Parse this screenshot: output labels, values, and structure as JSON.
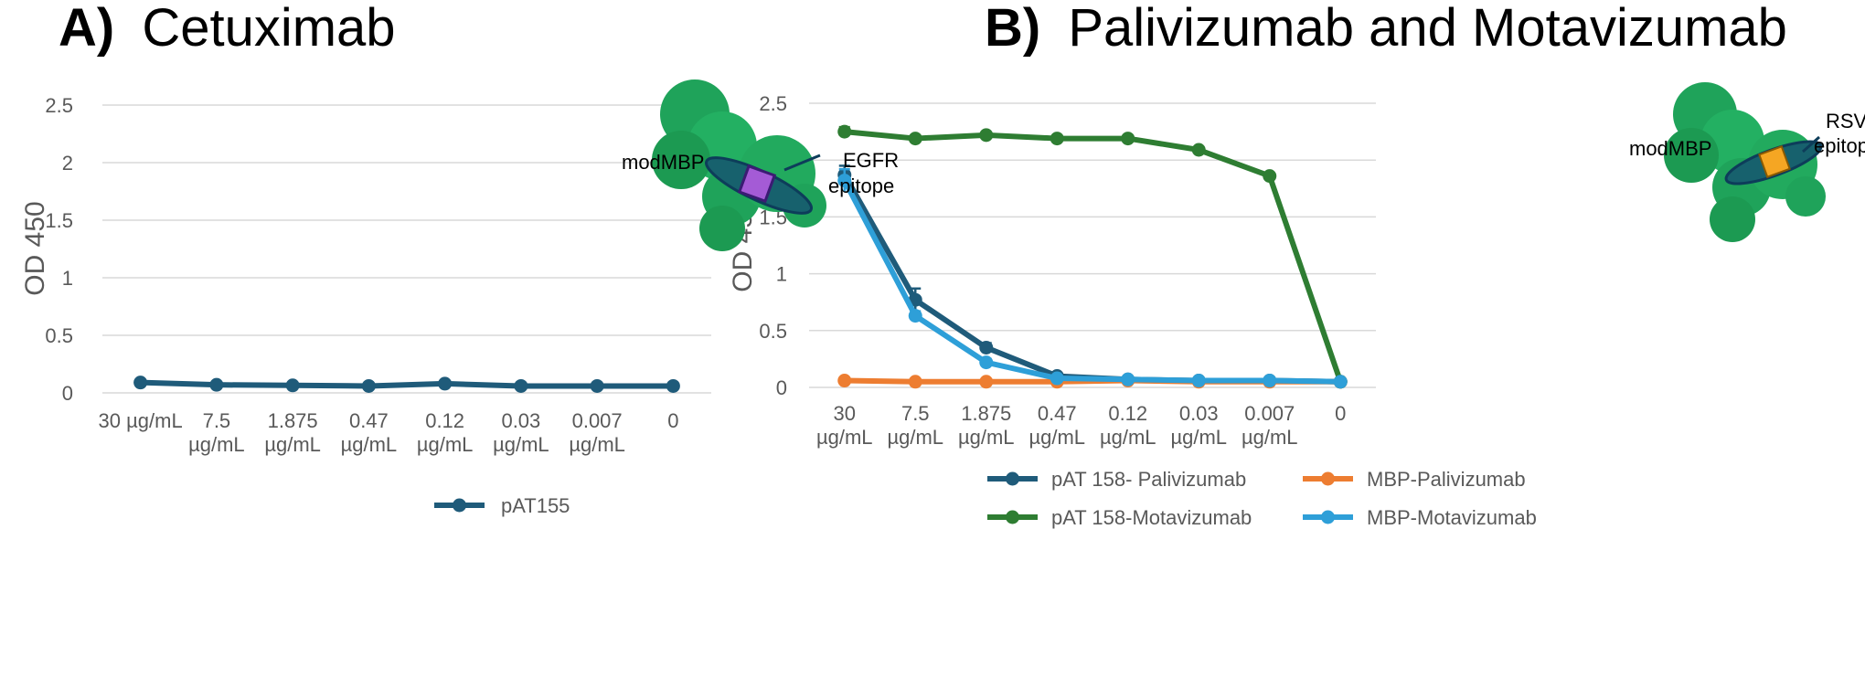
{
  "panels": [
    {
      "letter": "A)",
      "title": "Cetuximab"
    },
    {
      "letter": "B)",
      "title": "Palivizumab and Motavizumab"
    }
  ],
  "annotations": {
    "a_mod": "modMBP",
    "a_epi1": "EGFR",
    "a_epi2": "epitope",
    "b_mod": "modMBP",
    "b_epi1": "RSV",
    "b_epi2": "epitop"
  },
  "colors": {
    "pAT155": "#1f5b7a",
    "pAT158_pali": "#1f5b7a",
    "mbp_pali": "#ed7d31",
    "pAT158_mota": "#2e7d32",
    "mbp_mota": "#2e9fd8",
    "protein": "#1fa35a",
    "epitope_a": "#a45bd6",
    "epitope_b": "#f5a623"
  },
  "chart_data": [
    {
      "type": "line",
      "title": "",
      "ylabel": "OD 450",
      "xlabel": "",
      "ylim": [
        0,
        2.5
      ],
      "yticks": [
        "0",
        "0.5",
        "1",
        "1.5",
        "2",
        "2.5"
      ],
      "categories": [
        [
          "30 µg/mL"
        ],
        [
          "7.5",
          "µg/mL"
        ],
        [
          "1.875",
          "µg/mL"
        ],
        [
          "0.47",
          "µg/mL"
        ],
        [
          "0.12",
          "µg/mL"
        ],
        [
          "0.03",
          "µg/mL"
        ],
        [
          "0.007",
          "µg/mL"
        ],
        [
          "0"
        ]
      ],
      "grid": true,
      "legend_position": "bottom",
      "series": [
        {
          "name": "pAT155",
          "color_key": "pAT155",
          "values": [
            0.09,
            0.07,
            0.065,
            0.06,
            0.08,
            0.06,
            0.06,
            0.06
          ]
        }
      ]
    },
    {
      "type": "line",
      "title": "",
      "ylabel": "OD 450",
      "xlabel": "",
      "ylim": [
        0,
        2.5
      ],
      "yticks": [
        "0",
        "0.5",
        "1",
        "1.5",
        "2",
        "2.5"
      ],
      "categories": [
        [
          "30",
          "µg/mL"
        ],
        [
          "7.5",
          "µg/mL"
        ],
        [
          "1.875",
          "µg/mL"
        ],
        [
          "0.47",
          "µg/mL"
        ],
        [
          "0.12",
          "µg/mL"
        ],
        [
          "0.03",
          "µg/mL"
        ],
        [
          "0.007",
          "µg/mL"
        ],
        [
          "0"
        ]
      ],
      "grid": true,
      "legend_position": "bottom",
      "series": [
        {
          "name": "pAT 158- Palivizumab",
          "color_key": "pAT158_pali",
          "values": [
            1.87,
            0.77,
            0.35,
            0.1,
            0.07,
            0.06,
            0.06,
            0.05
          ],
          "errors": [
            0.08,
            0.1,
            0.04,
            0.02,
            0.01,
            0.01,
            0.01,
            0.01
          ]
        },
        {
          "name": "MBP-Palivizumab",
          "color_key": "mbp_pali",
          "values": [
            0.06,
            0.05,
            0.05,
            0.05,
            0.06,
            0.05,
            0.05,
            0.05
          ]
        },
        {
          "name": "pAT 158-Motavizumab",
          "color_key": "pAT158_mota",
          "values": [
            2.25,
            2.19,
            2.22,
            2.19,
            2.19,
            2.09,
            1.86,
            0.05
          ],
          "errors": [
            0.04,
            0.02,
            0.02,
            0.02,
            0.02,
            0.02,
            0.02,
            0.01
          ]
        },
        {
          "name": "MBP-Motavizumab",
          "color_key": "mbp_mota",
          "values": [
            1.82,
            0.63,
            0.22,
            0.08,
            0.07,
            0.06,
            0.06,
            0.05
          ],
          "errors": [
            0.1,
            0.04,
            0.03,
            0.01,
            0.01,
            0.01,
            0.01,
            0.01
          ]
        }
      ]
    }
  ]
}
